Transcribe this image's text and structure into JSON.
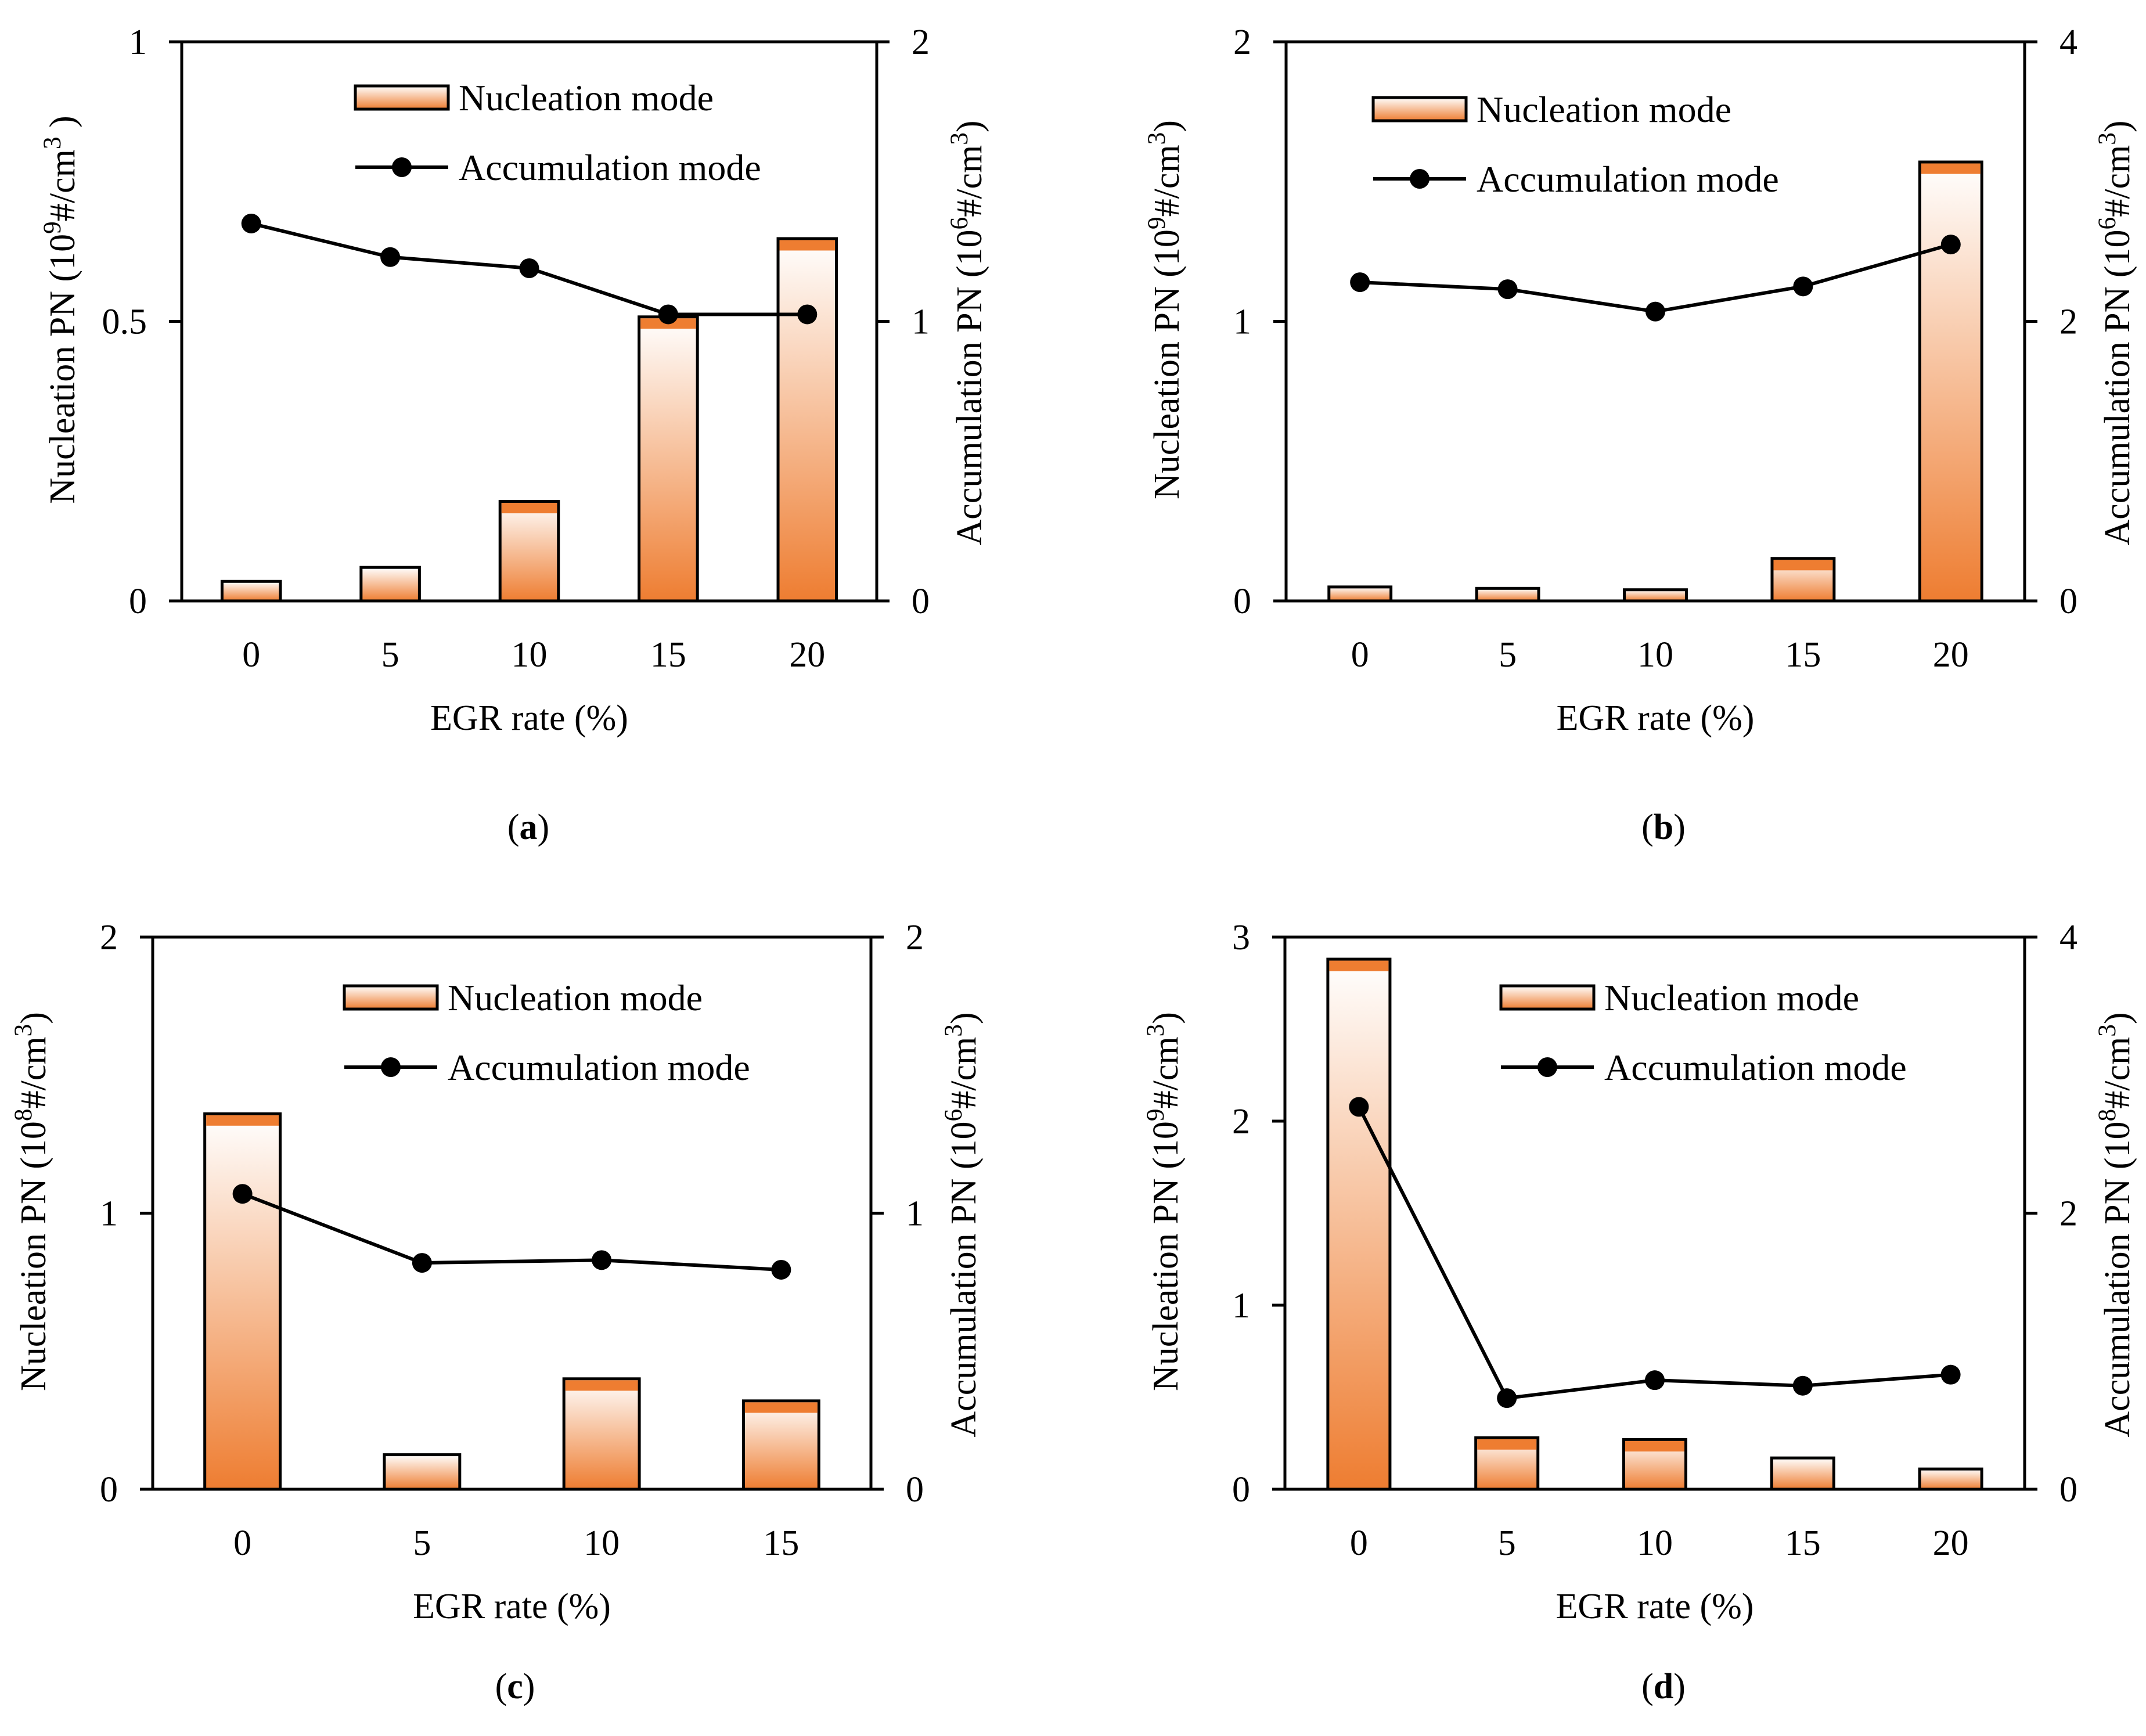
{
  "panel_captions": [
    "a",
    "b",
    "c",
    "d"
  ],
  "colors": {
    "bar_top": "#ffffff",
    "bar_bottom": "#ee7d31",
    "bar_cap": "#ee7d31",
    "line": "#000000",
    "marker": "#000000",
    "axis": "#000000"
  },
  "chart_data": [
    {
      "type": "bar+line",
      "panel": "a",
      "categories": [
        "0",
        "5",
        "10",
        "15",
        "20"
      ],
      "xlabel": "EGR rate (%)",
      "ylabel": "Nucleation PN (10⁹#/cm³ )",
      "y2label": "Accumulation PN (10⁶#/cm³)",
      "ylim": [
        0,
        1
      ],
      "yticks": [
        "0",
        "0.5",
        "1"
      ],
      "y2lim": [
        0,
        2
      ],
      "y2ticks": [
        "0",
        "1",
        "2"
      ],
      "series": [
        {
          "name": "Nucleation mode",
          "kind": "bar",
          "axis": "left",
          "values": [
            0.035,
            0.06,
            0.178,
            0.508,
            0.648
          ]
        },
        {
          "name": "Accumulation mode",
          "kind": "line",
          "axis": "right",
          "values": [
            1.35,
            1.23,
            1.19,
            1.025,
            1.025
          ]
        }
      ],
      "legend": [
        "Nucleation mode",
        "Accumulation mode"
      ],
      "legend_position": "top-right"
    },
    {
      "type": "bar+line",
      "panel": "b",
      "categories": [
        "0",
        "5",
        "10",
        "15",
        "20"
      ],
      "xlabel": "EGR rate (%)",
      "ylabel": "Nucleation PN (10⁹#/cm³)",
      "y2label": "Accumulation PN (10⁶#/cm³)",
      "ylim": [
        0,
        2
      ],
      "yticks": [
        "0",
        "1",
        "2"
      ],
      "y2lim": [
        0,
        4
      ],
      "y2ticks": [
        "0",
        "2",
        "4"
      ],
      "series": [
        {
          "name": "Nucleation mode",
          "kind": "bar",
          "axis": "left",
          "values": [
            0.05,
            0.045,
            0.04,
            0.152,
            1.57
          ]
        },
        {
          "name": "Accumulation mode",
          "kind": "line",
          "axis": "right",
          "values": [
            2.28,
            2.23,
            2.07,
            2.25,
            2.55
          ]
        }
      ],
      "legend": [
        "Nucleation mode",
        "Accumulation mode"
      ],
      "legend_position": "top-center"
    },
    {
      "type": "bar+line",
      "panel": "c",
      "categories": [
        "0",
        "5",
        "10",
        "15"
      ],
      "xlabel": "EGR rate (%)",
      "ylabel": "Nucleation PN (10⁸#/cm³)",
      "y2label": "Accumulation PN (10⁶#/cm³)",
      "ylim": [
        0,
        2
      ],
      "yticks": [
        "0",
        "1",
        "2"
      ],
      "y2lim": [
        0,
        2
      ],
      "y2ticks": [
        "0",
        "1",
        "2"
      ],
      "series": [
        {
          "name": "Nucleation mode",
          "kind": "bar",
          "axis": "left",
          "values": [
            1.36,
            0.125,
            0.4,
            0.32
          ]
        },
        {
          "name": "Accumulation mode",
          "kind": "line",
          "axis": "right",
          "values": [
            1.07,
            0.82,
            0.83,
            0.795
          ]
        }
      ],
      "legend": [
        "Nucleation mode",
        "Accumulation mode"
      ],
      "legend_position": "top-right"
    },
    {
      "type": "bar+line",
      "panel": "d",
      "categories": [
        "0",
        "5",
        "10",
        "15",
        "20"
      ],
      "xlabel": "EGR rate (%)",
      "ylabel": "Nucleation PN (10⁹#/cm³)",
      "y2label": "Accumulation PN (10⁸#/cm³)",
      "ylim": [
        0,
        3
      ],
      "yticks": [
        "0",
        "1",
        "2",
        "3"
      ],
      "y2lim": [
        0,
        4
      ],
      "y2ticks": [
        "0",
        "2",
        "4"
      ],
      "series": [
        {
          "name": "Nucleation mode",
          "kind": "bar",
          "axis": "left",
          "values": [
            2.88,
            0.28,
            0.27,
            0.17,
            0.11
          ]
        },
        {
          "name": "Accumulation mode",
          "kind": "line",
          "axis": "right",
          "values": [
            2.77,
            0.66,
            0.79,
            0.75,
            0.83
          ]
        }
      ],
      "legend": [
        "Nucleation mode",
        "Accumulation mode"
      ],
      "legend_position": "top-right"
    }
  ]
}
